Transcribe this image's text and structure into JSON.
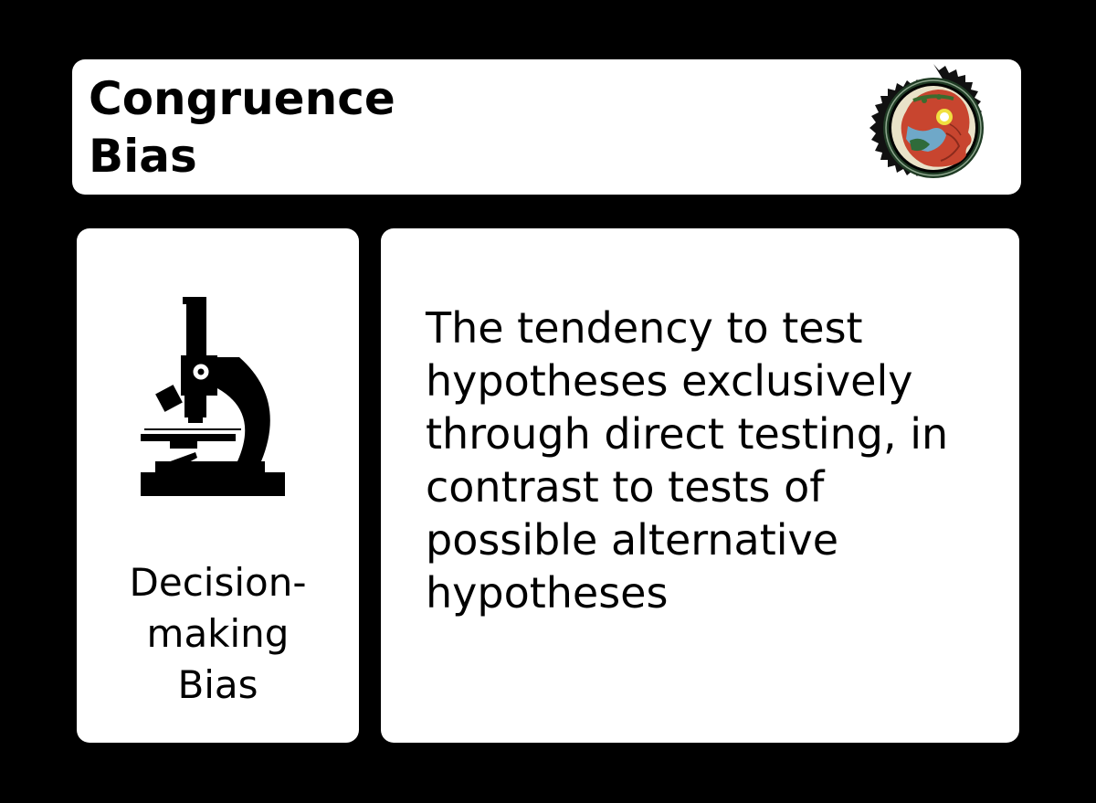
{
  "card": {
    "title": "Congruence\nBias",
    "category": "Decision-\nmaking\nBias",
    "definition": "The tendency to test hypotheses exclusively through direct testing, in contrast to tests of possible alternative hypotheses",
    "icon": "microscope-icon",
    "badge_icon": "head-seal-icon",
    "colors": {
      "background": "#000000",
      "panel": "#ffffff",
      "text": "#000000"
    }
  }
}
